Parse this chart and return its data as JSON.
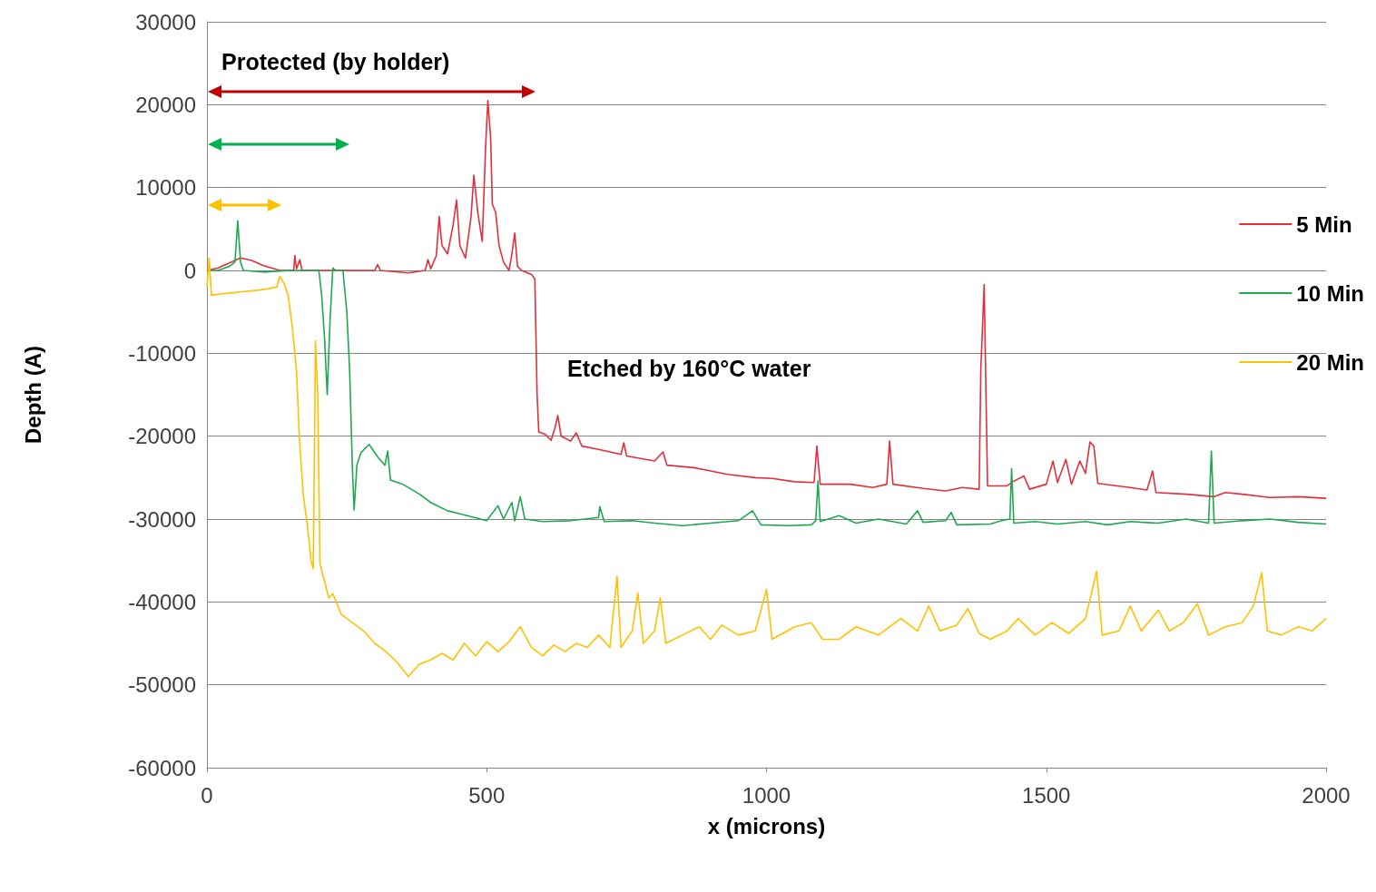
{
  "chart_data": {
    "type": "line",
    "xlabel": "x (microns)",
    "ylabel": "Depth (A)",
    "xlim": [
      0,
      2000
    ],
    "xticks": [
      0,
      500,
      1000,
      1500,
      2000
    ],
    "ylim": [
      -60000,
      30000
    ],
    "yticks": [
      -60000,
      -50000,
      -40000,
      -30000,
      -20000,
      -10000,
      0,
      10000,
      20000,
      30000
    ],
    "grid": "y",
    "legend": "right",
    "marker": "none",
    "line_style": "solid",
    "annotations": [
      "Protected (by holder)",
      "Etched by 160°C water"
    ],
    "series": [
      {
        "name": "5 Min",
        "color": "#e0303c",
        "x": [
          0,
          20,
          40,
          60,
          80,
          100,
          130,
          155,
          157,
          160,
          166,
          170,
          250,
          300,
          305,
          310,
          360,
          390,
          395,
          400,
          410,
          415,
          420,
          430,
          440,
          446,
          452,
          462,
          472,
          477,
          484,
          492,
          498,
          502,
          507,
          510,
          516,
          522,
          530,
          540,
          545,
          550,
          555,
          562,
          580,
          586,
          590,
          593,
          605,
          615,
          622,
          627,
          633,
          650,
          660,
          670,
          700,
          740,
          745,
          750,
          800,
          815,
          822,
          870,
          900,
          930,
          980,
          1010,
          1050,
          1085,
          1090,
          1096,
          1150,
          1190,
          1215,
          1220,
          1226,
          1280,
          1320,
          1350,
          1380,
          1383,
          1389,
          1395,
          1430,
          1440,
          1460,
          1470,
          1500,
          1512,
          1520,
          1535,
          1545,
          1560,
          1570,
          1578,
          1585,
          1592,
          1650,
          1680,
          1690,
          1696,
          1750,
          1800,
          1820,
          1850,
          1900,
          1950,
          2000
        ],
        "values": [
          0,
          300,
          900,
          1500,
          1200,
          600,
          0,
          0,
          1800,
          200,
          1300,
          0,
          0,
          0,
          700,
          0,
          -300,
          0,
          1300,
          200,
          1800,
          6500,
          3000,
          2000,
          5500,
          8500,
          3000,
          1500,
          6500,
          11500,
          7000,
          3500,
          15000,
          20500,
          16000,
          8000,
          7000,
          3000,
          1000,
          0,
          2000,
          4500,
          500,
          0,
          -500,
          -1000,
          -15000,
          -19500,
          -19800,
          -20500,
          -19000,
          -17500,
          -20000,
          -20600,
          -19600,
          -21200,
          -21600,
          -22200,
          -20800,
          -22400,
          -23000,
          -21900,
          -23500,
          -23800,
          -24200,
          -24600,
          -25000,
          -25100,
          -25500,
          -25600,
          -21200,
          -25800,
          -25800,
          -26200,
          -25800,
          -20600,
          -25800,
          -26300,
          -26600,
          -26200,
          -26400,
          -12000,
          -1700,
          -26000,
          -26000,
          -25500,
          -24800,
          -26400,
          -25800,
          -23000,
          -25600,
          -22800,
          -25800,
          -23000,
          -24500,
          -20700,
          -21200,
          -25700,
          -26200,
          -26500,
          -24200,
          -26800,
          -27000,
          -27300,
          -26800,
          -27000,
          -27400,
          -27300,
          -27500
        ]
      },
      {
        "name": "10 Min",
        "color": "#1ea850",
        "x": [
          0,
          20,
          40,
          50,
          55,
          60,
          65,
          100,
          150,
          200,
          205,
          210,
          215,
          220,
          225,
          230,
          243,
          250,
          255,
          260,
          263,
          268,
          275,
          290,
          305,
          318,
          323,
          328,
          350,
          380,
          400,
          430,
          460,
          500,
          520,
          530,
          545,
          550,
          560,
          568,
          600,
          650,
          700,
          702,
          710,
          760,
          800,
          850,
          900,
          950,
          975,
          990,
          1040,
          1080,
          1088,
          1092,
          1096,
          1130,
          1160,
          1200,
          1250,
          1270,
          1280,
          1320,
          1330,
          1340,
          1400,
          1420,
          1435,
          1438,
          1442,
          1480,
          1520,
          1570,
          1610,
          1650,
          1700,
          1750,
          1790,
          1795,
          1800,
          1850,
          1900,
          1950,
          2000
        ],
        "values": [
          0,
          0,
          500,
          1000,
          6000,
          1000,
          0,
          -200,
          0,
          0,
          -3000,
          -8000,
          -15000,
          -6000,
          300,
          0,
          0,
          -5000,
          -12000,
          -24000,
          -28900,
          -23500,
          -22000,
          -21000,
          -22500,
          -23500,
          -21800,
          -25300,
          -25800,
          -27000,
          -28000,
          -29000,
          -29500,
          -30200,
          -28400,
          -30000,
          -28000,
          -30200,
          -27300,
          -30000,
          -30300,
          -30200,
          -29800,
          -28500,
          -30300,
          -30200,
          -30500,
          -30800,
          -30500,
          -30200,
          -29000,
          -30700,
          -30800,
          -30700,
          -30200,
          -25400,
          -30300,
          -29600,
          -30500,
          -30000,
          -30600,
          -29000,
          -30400,
          -30200,
          -29200,
          -30700,
          -30600,
          -30200,
          -30000,
          -23900,
          -30500,
          -30300,
          -30600,
          -30300,
          -30700,
          -30300,
          -30500,
          -30000,
          -30500,
          -21800,
          -30500,
          -30200,
          -30000,
          -30400,
          -30600
        ]
      },
      {
        "name": "20 Min",
        "color": "#ffc000",
        "x": [
          0,
          4,
          8,
          30,
          60,
          90,
          110,
          125,
          130,
          138,
          145,
          152,
          160,
          165,
          172,
          180,
          186,
          190,
          194,
          198,
          202,
          210,
          218,
          225,
          240,
          260,
          280,
          300,
          320,
          340,
          360,
          380,
          400,
          420,
          440,
          460,
          480,
          500,
          520,
          540,
          560,
          580,
          600,
          620,
          640,
          660,
          680,
          700,
          720,
          733,
          740,
          760,
          770,
          780,
          800,
          810,
          820,
          850,
          880,
          900,
          920,
          950,
          980,
          1000,
          1010,
          1050,
          1080,
          1100,
          1130,
          1160,
          1200,
          1240,
          1270,
          1290,
          1310,
          1340,
          1360,
          1380,
          1400,
          1430,
          1450,
          1480,
          1510,
          1540,
          1570,
          1590,
          1600,
          1630,
          1650,
          1670,
          1700,
          1720,
          1745,
          1770,
          1790,
          1820,
          1850,
          1870,
          1885,
          1895,
          1920,
          1950,
          1975,
          2000
        ],
        "values": [
          -2000,
          1500,
          -3000,
          -2800,
          -2600,
          -2400,
          -2200,
          -2000,
          -700,
          -1600,
          -3000,
          -6500,
          -12000,
          -19800,
          -27000,
          -31000,
          -35000,
          -36000,
          -8500,
          -15000,
          -35400,
          -37500,
          -39500,
          -39000,
          -41500,
          -42500,
          -43500,
          -45000,
          -46000,
          -47300,
          -49000,
          -47500,
          -47000,
          -46200,
          -47000,
          -45000,
          -46500,
          -44800,
          -46000,
          -44800,
          -43000,
          -45500,
          -46500,
          -45200,
          -46000,
          -45000,
          -45500,
          -44000,
          -45500,
          -36900,
          -45500,
          -43500,
          -38900,
          -45000,
          -43500,
          -39500,
          -45000,
          -44000,
          -43000,
          -44500,
          -42800,
          -44000,
          -43500,
          -38500,
          -44500,
          -43000,
          -42500,
          -44500,
          -44500,
          -43000,
          -44000,
          -42000,
          -43500,
          -40500,
          -43500,
          -42800,
          -40800,
          -43800,
          -44500,
          -43500,
          -42000,
          -44000,
          -42500,
          -43800,
          -42000,
          -36300,
          -44000,
          -43500,
          -40500,
          -43500,
          -41000,
          -43500,
          -42500,
          -40200,
          -44000,
          -43000,
          -42500,
          -40500,
          -36500,
          -43500,
          -44000,
          -43000,
          -43500,
          -42000
        ]
      }
    ]
  }
}
